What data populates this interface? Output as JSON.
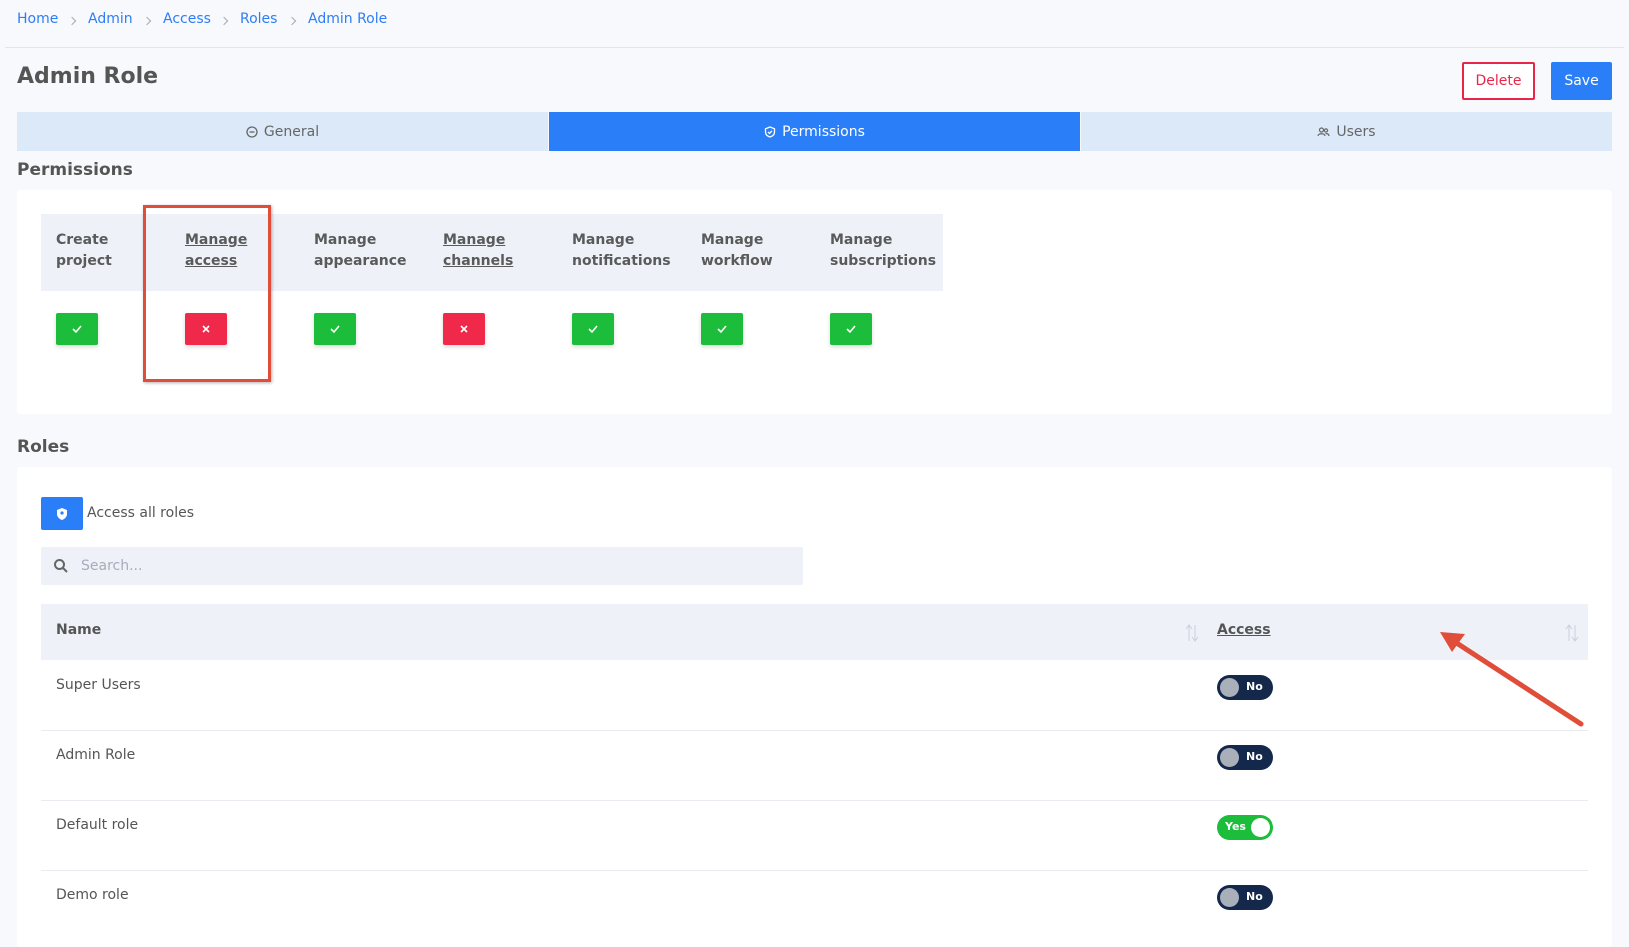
{
  "breadcrumbs": [
    "Home",
    "Admin",
    "Access",
    "Roles",
    "Admin Role"
  ],
  "header": {
    "title": "Admin Role",
    "delete": "Delete",
    "save": "Save"
  },
  "tabs": [
    {
      "label": "General",
      "active": false
    },
    {
      "label": "Permissions",
      "active": true
    },
    {
      "label": "Users",
      "active": false
    }
  ],
  "permissions": {
    "title": "Permissions",
    "columns": [
      {
        "label": "Create project",
        "allowed": true,
        "underline": false
      },
      {
        "label": "Manage access",
        "allowed": false,
        "underline": true
      },
      {
        "label": "Manage appearance",
        "allowed": true,
        "underline": false
      },
      {
        "label": "Manage channels",
        "allowed": false,
        "underline": true
      },
      {
        "label": "Manage notifications",
        "allowed": true,
        "underline": false
      },
      {
        "label": "Manage workflow",
        "allowed": true,
        "underline": false
      },
      {
        "label": "Manage subscriptions",
        "allowed": true,
        "underline": false
      }
    ]
  },
  "roles": {
    "title": "Roles",
    "access_all": "Access all roles",
    "search_placeholder": "Search...",
    "table": {
      "headers": [
        "Name",
        "Access"
      ],
      "rows": [
        {
          "name": "Super Users",
          "access": "No",
          "on": false
        },
        {
          "name": "Admin Role",
          "access": "No",
          "on": false
        },
        {
          "name": "Default role",
          "access": "Yes",
          "on": true
        },
        {
          "name": "Demo role",
          "access": "No",
          "on": false
        }
      ]
    }
  }
}
